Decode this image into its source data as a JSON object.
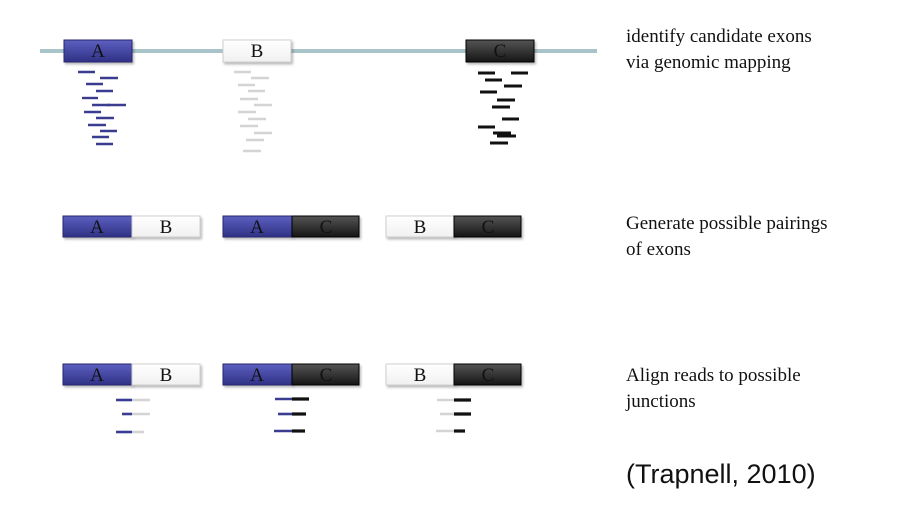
{
  "colors": {
    "exon_a": "#3d3f9e",
    "exon_b": "#ffffff",
    "exon_c": "#2a2a2a",
    "genome_line": "#a9c4c9",
    "read_a": "#3a3d8f",
    "read_b": "#d4d4d4",
    "read_c": "#111111"
  },
  "exon_labels": {
    "a": "A",
    "b": "B",
    "c": "C"
  },
  "steps": [
    {
      "line1": "identify candidate exons",
      "line2": "via genomic mapping"
    },
    {
      "line1": "Generate possible pairings",
      "line2": "of exons"
    },
    {
      "line1": "Align reads to possible",
      "line2": "junctions"
    }
  ],
  "citation": "(Trapnell, 2010)"
}
